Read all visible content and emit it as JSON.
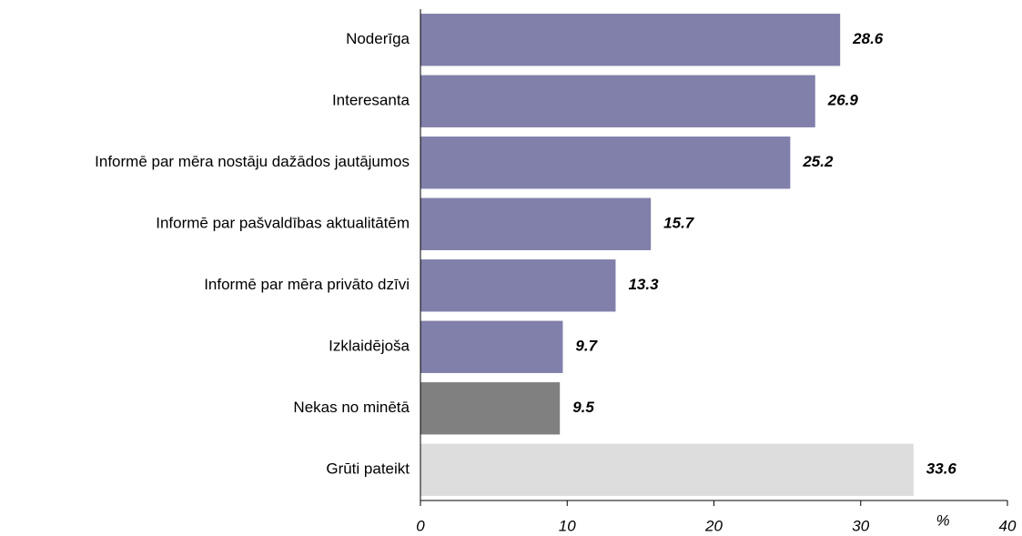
{
  "chart_data": {
    "type": "hbar",
    "categories": [
      "Noderīga",
      "Interesanta",
      "Informē par mēra nostāju dažādos jautājumos",
      "Informē par pašvaldības aktualitātēm",
      "Informē par mēra privāto dzīvi",
      "Izklaidējoša",
      "Nekas no minētā",
      "Grūti pateikt"
    ],
    "values": [
      28.6,
      26.9,
      25.2,
      15.7,
      13.3,
      9.7,
      9.5,
      33.6
    ],
    "colors": [
      "#8080aa",
      "#8080aa",
      "#8080aa",
      "#8080aa",
      "#8080aa",
      "#8080aa",
      "#808080",
      "#dddddd"
    ],
    "x_label": "%",
    "xlim": [
      0,
      40
    ],
    "xticks": [
      0,
      10,
      20,
      30,
      40
    ]
  }
}
